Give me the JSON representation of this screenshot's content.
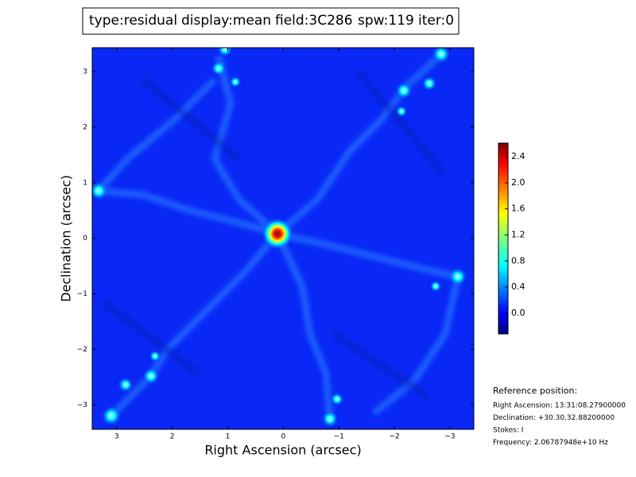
{
  "chart_data": {
    "type": "image",
    "header": [
      {
        "text": "type:residual",
        "color": "#000000"
      },
      {
        "text": "display:mean",
        "color": "#ff0000"
      },
      {
        "text": "field:3C286",
        "color": "#000000"
      },
      {
        "text": "spw:119",
        "color": "#000000"
      },
      {
        "text": "iter:0",
        "color": "#000000"
      }
    ],
    "xlabel": "Right Ascension (arcsec)",
    "ylabel": "Declination (arcsec)",
    "xlim": [
      3.44,
      -3.43
    ],
    "ylim": [
      -3.44,
      3.43
    ],
    "xticks": [
      3,
      2,
      1,
      0,
      {
        "value": -1,
        "label": "−1"
      },
      {
        "value": -2,
        "label": "−2"
      },
      {
        "value": -3,
        "label": "−3"
      }
    ],
    "yticks": [
      {
        "value": -3,
        "label": "−3"
      },
      {
        "value": -2,
        "label": "−2"
      },
      {
        "value": -1,
        "label": "−1"
      },
      0,
      1,
      2,
      3
    ],
    "colorbar": {
      "colormap": "jet",
      "lim": [
        -0.32,
        2.61
      ],
      "ticks": [
        {
          "value": 0,
          "label": "0.0"
        },
        0.4,
        0.8,
        1.2,
        1.6,
        {
          "value": 2,
          "label": "2.0"
        },
        2.4
      ]
    }
  },
  "reference": {
    "title": "Reference position:",
    "lines": [
      "Right Ascension: 13:31:08.27900000",
      "Declination: +30.30.32.88200000",
      "Stokes: I",
      "Frequency: 2.06787948e+10 Hz"
    ]
  }
}
